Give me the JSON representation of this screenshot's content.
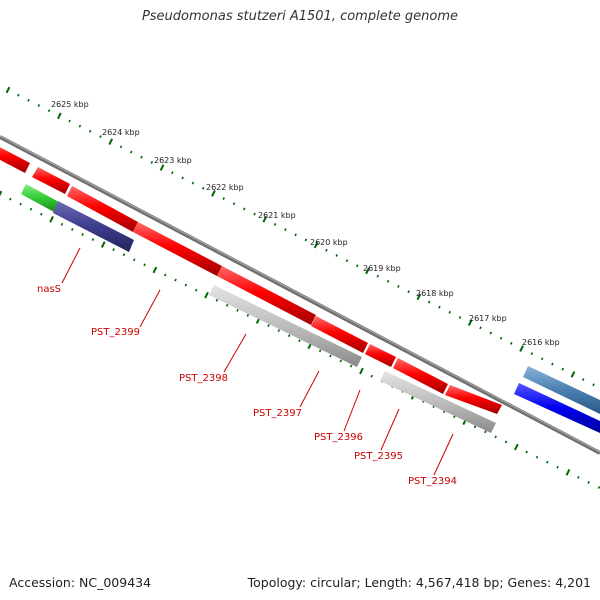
{
  "title": "Pseudomonas stutzeri A1501, complete genome",
  "accession": "Accession: NC_009434",
  "stats": "Topology: circular; Length: 4,567,418 bp; Genes: 4,201",
  "kbp_labels": [
    "2625 kbp",
    "2624 kbp",
    "2623 kbp",
    "2622 kbp",
    "2621 kbp",
    "2620 kbp",
    "2619 kbp",
    "2618 kbp",
    "2617 kbp",
    "2616 kbp"
  ],
  "gene_labels": [
    "nasS",
    "PST_2399",
    "PST_2398",
    "PST_2397",
    "PST_2396",
    "PST_2395",
    "PST_2394"
  ],
  "colors": {
    "forward_gene": "#ff0000",
    "reverse_gene": "#b0b0b0",
    "rna_gene": "#33cc33",
    "feature_dark": "#3d3d8f",
    "feature_blue": "#0000ee",
    "feature_steel": "#4a7fb0",
    "backbone": "#808080",
    "tick": "#006600",
    "label": "#cc0000"
  }
}
